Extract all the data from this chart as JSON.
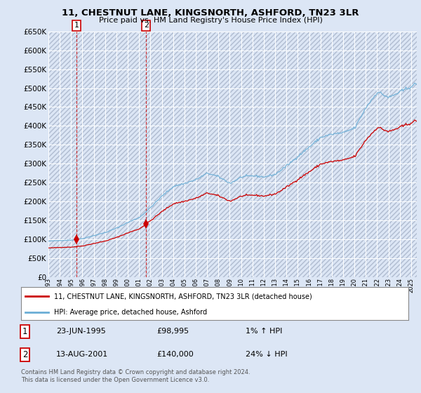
{
  "title": "11, CHESTNUT LANE, KINGSNORTH, ASHFORD, TN23 3LR",
  "subtitle": "Price paid vs. HM Land Registry's House Price Index (HPI)",
  "legend_label_red": "11, CHESTNUT LANE, KINGSNORTH, ASHFORD, TN23 3LR (detached house)",
  "legend_label_blue": "HPI: Average price, detached house, Ashford",
  "transaction1_date": "23-JUN-1995",
  "transaction1_price": "£98,995",
  "transaction1_hpi": "1% ↑ HPI",
  "transaction2_date": "13-AUG-2001",
  "transaction2_price": "£140,000",
  "transaction2_hpi": "24% ↓ HPI",
  "footer": "Contains HM Land Registry data © Crown copyright and database right 2024.\nThis data is licensed under the Open Government Licence v3.0.",
  "ylim": [
    0,
    650000
  ],
  "yticks": [
    0,
    50000,
    100000,
    150000,
    200000,
    250000,
    300000,
    350000,
    400000,
    450000,
    500000,
    550000,
    600000,
    650000
  ],
  "background_color": "#dce6f5",
  "plot_bg": "#dce6f5",
  "grid_color": "#ffffff",
  "red_color": "#cc0000",
  "blue_color": "#6baed6",
  "t1_year": 1995.48,
  "t1_value": 98995,
  "t2_year": 2001.62,
  "t2_value": 140000,
  "xmin": 1993.0,
  "xmax": 2025.5,
  "xtick_years": [
    1993,
    1994,
    1995,
    1996,
    1997,
    1998,
    1999,
    2000,
    2001,
    2002,
    2003,
    2004,
    2005,
    2006,
    2007,
    2008,
    2009,
    2010,
    2011,
    2012,
    2013,
    2014,
    2015,
    2016,
    2017,
    2018,
    2019,
    2020,
    2021,
    2022,
    2023,
    2024,
    2025
  ]
}
